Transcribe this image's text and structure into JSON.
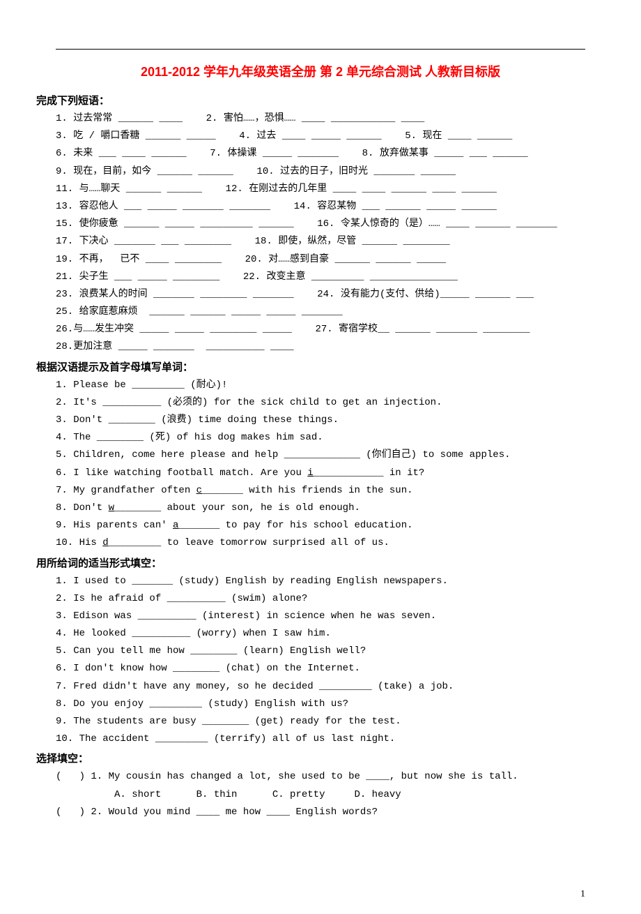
{
  "title": "2011-2012 学年九年级英语全册 第 2 单元综合测试 人教新目标版",
  "sections": {
    "phrases": {
      "header": "完成下列短语：",
      "items": [
        "1. 过去常常 ______ ____    2. 害怕……，恐惧…… ____ ___________ ____",
        "3. 吃 / 嚼口香糖 ______ _____    4. 过去 ____ _____ ______    5. 现在 ____ ______",
        "6. 未来 ___ ____ ______    7. 体操课 _____ _______    8. 放弃做某事 _____ ___ ______",
        "9. 现在，目前，如今 ______ ______    10. 过去的日子，旧时光 _______ ______",
        "11. 与……聊天 ______ ______    12. 在刚过去的几年里 ____ ____ ______ ____ ______",
        "13. 容忍他人 ___ _____ _______ _______    14. 容忍某物 ___ ______ _____ ______",
        "15. 使你疲惫 ______ _____ _________ ______    16. 令某人惊奇的（是）…… ____ ______ _______",
        "17. 下决心 _______ ___ ________    18. 即使，纵然，尽管 ______ ________",
        "19. 不再，  已不 ____ ________    20. 对……感到自豪 ______ ______ _____",
        "21. 尖子生 ___ _____ ________    22. 改变主意 _________ _______________",
        "23. 浪费某人的时间 _______ ________ _______    24. 没有能力(支付、供给)_____ ______ ___",
        "25. 给家庭惹麻烦  ______ ______ _____ _____ _______",
        "26.与……发生冲突 _____ _____ ________ _____    27. 寄宿学校__ ______ _______ ________",
        "28.更加注意 _____ _______  __________ ____"
      ]
    },
    "fillword": {
      "header": "根据汉语提示及首字母填写单词：",
      "items": [
        "1. Please be _________ (耐心)!",
        "2. It's __________ (必须的) for the sick child to get an injection.",
        "3. Don't ________ (浪费) time doing these things.",
        "4. The ________ (死) of his dog makes him sad.",
        "5. Children, come here please and help _____________ (你们自己) to some apples.",
        "6. I like watching football match. Are you |i|____________ in it?",
        "7. My grandfather often |c|_______ with his friends in the sun.",
        "8. Don't |w|________ about your son, he is old enough.",
        "9. His parents can' |a|_______ to pay for his school education.",
        "10. His |d|_________ to leave tomorrow surprised all of us."
      ]
    },
    "wordform": {
      "header": "用所给词的适当形式填空：",
      "items": [
        "1. I used to _______ (study) English by reading English newspapers.",
        "2. Is he afraid of __________ (swim) alone?",
        "3. Edison was __________ (interest) in science when he was seven.",
        "4. He looked __________ (worry) when I saw him.",
        "5. Can you tell me how ________ (learn) English well?",
        "6. I don't know how ________ (chat) on the Internet.",
        "7. Fred didn't have any money, so he decided _________ (take) a job.",
        "8. Do you enjoy _________ (study) English with us?",
        "9. The students are busy ________ (get) ready for the test.",
        "10. The accident _________ (terrify) all of us last night."
      ]
    },
    "choice": {
      "header": "选择填空：",
      "items": [
        "(   ) 1. My cousin has changed a lot, she used to be ____, but now she is tall.",
        "          A. short      B. thin      C. pretty     D. heavy",
        "(   ) 2. Would you mind ____ me how ____ English words?"
      ]
    }
  },
  "pageNumber": "1"
}
